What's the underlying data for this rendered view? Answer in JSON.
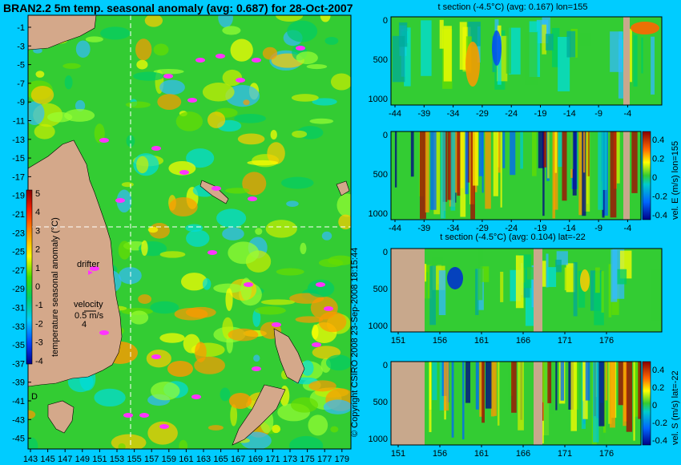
{
  "main_title": "BRAN2.2 5m temp. seasonal anomaly (avg: 0.687) for 28-Oct-2007",
  "map": {
    "lat_ticks": [
      "-1",
      "-3",
      "-5",
      "-7",
      "-9",
      "-11",
      "-13",
      "-15",
      "-17",
      "-19",
      "-21",
      "-23",
      "-25",
      "-27",
      "-29",
      "-31",
      "-33",
      "-35",
      "-37",
      "-39",
      "-41",
      "-43",
      "-45"
    ],
    "lon_ticks": [
      "143",
      "145",
      "147",
      "149",
      "151",
      "153",
      "155",
      "157",
      "159",
      "161",
      "163",
      "165",
      "167",
      "169",
      "171",
      "173",
      "175",
      "177",
      "179"
    ],
    "colorbar_label": "temperature seasonal anomaly (°C)",
    "colorbar_ticks": [
      "5",
      "4",
      "3",
      "2",
      "1",
      "0",
      "-1",
      "-2",
      "-3",
      "-4"
    ],
    "drifter_label": "drifter",
    "velocity_label": "velocity",
    "velocity_value": "0.5 m/s",
    "velocity_value2": "4",
    "island_label": "D"
  },
  "panels": [
    {
      "title": "t section (-4.5°C) (avg: 0.167) lon=155",
      "x_ticks": [
        "-44",
        "-39",
        "-34",
        "-29",
        "-24",
        "-19",
        "-14",
        "-9",
        "-4"
      ],
      "y_ticks": [
        "0",
        "500",
        "1000"
      ]
    },
    {
      "title": "",
      "x_ticks": [
        "-44",
        "-39",
        "-34",
        "-29",
        "-24",
        "-19",
        "-14",
        "-9",
        "-4"
      ],
      "y_ticks": [
        "0",
        "500",
        "1000"
      ],
      "colorbar_label": "vel. E (m/s) lon=155",
      "colorbar_ticks": [
        "0.4",
        "0.2",
        "0",
        "-0.2",
        "-0.4"
      ]
    },
    {
      "title": "t section (-4.5°C) (avg: 0.104) lat=-22",
      "x_ticks": [
        "151",
        "156",
        "161",
        "166",
        "171",
        "176"
      ],
      "y_ticks": [
        "0",
        "500",
        "1000"
      ]
    },
    {
      "title": "",
      "x_ticks": [
        "151",
        "156",
        "161",
        "166",
        "171",
        "176"
      ],
      "y_ticks": [
        "0",
        "500",
        "1000"
      ],
      "colorbar_label": "vel. S (m/s) lat=-22",
      "colorbar_ticks": [
        "0.4",
        "0.2",
        "0",
        "-0.2",
        "-0.4"
      ]
    }
  ],
  "side_text": "© Copyright CSIRO 2008 23-Sep-2008 18:15:44",
  "colors": {
    "background": "#00ccff",
    "land": "#d4a88a",
    "ocean_base": "#33cc33"
  },
  "chart_data": [
    {
      "type": "heatmap",
      "title": "BRAN2.2 5m temp. seasonal anomaly (avg: 0.687) for 28-Oct-2007",
      "xlabel": "",
      "ylabel": "",
      "xlim": [
        143,
        180
      ],
      "ylim": [
        -45,
        0
      ],
      "colorbar_range": [
        -4,
        5
      ]
    },
    {
      "type": "heatmap",
      "title": "t section (-4.5°C) (avg: 0.167) lon=155",
      "xlim": [
        -45,
        -1
      ],
      "ylim": [
        1050,
        0
      ]
    },
    {
      "type": "heatmap",
      "title": "",
      "colorbar": "vel. E (m/s) lon=155",
      "xlim": [
        -45,
        -1
      ],
      "ylim": [
        1050,
        0
      ],
      "colorbar_range": [
        -0.4,
        0.4
      ]
    },
    {
      "type": "heatmap",
      "title": "t section (-4.5°C) (avg: 0.104) lat=-22",
      "xlim": [
        149,
        180
      ],
      "ylim": [
        1050,
        0
      ]
    },
    {
      "type": "heatmap",
      "title": "",
      "colorbar": "vel. S (m/s) lat=-22",
      "xlim": [
        149,
        180
      ],
      "ylim": [
        1050,
        0
      ],
      "colorbar_range": [
        -0.4,
        0.4
      ]
    }
  ]
}
